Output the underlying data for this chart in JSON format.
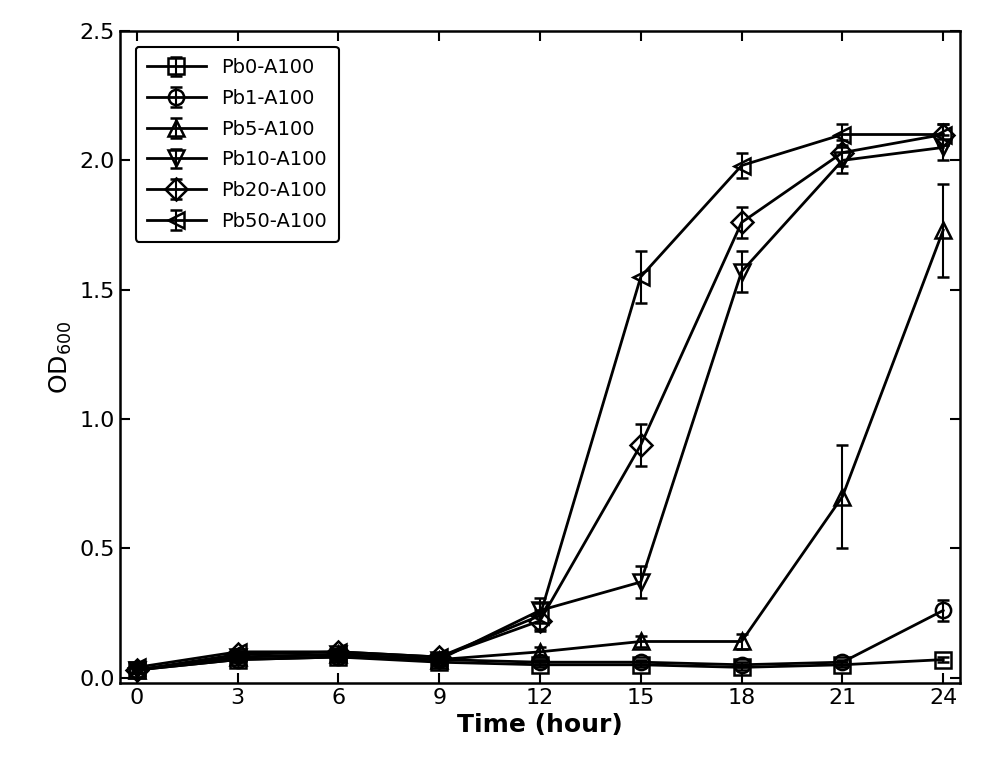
{
  "title": "",
  "xlabel": "Time (hour)",
  "ylabel": "OD$_{600}$",
  "xlim": [
    -0.5,
    24.5
  ],
  "ylim": [
    -0.02,
    2.5
  ],
  "xticks": [
    0,
    3,
    6,
    9,
    12,
    15,
    18,
    21,
    24
  ],
  "yticks": [
    0.0,
    0.5,
    1.0,
    1.5,
    2.0,
    2.5
  ],
  "series": [
    {
      "label": "Pb0-A100",
      "x": [
        0,
        3,
        6,
        9,
        12,
        15,
        18,
        21,
        24
      ],
      "y": [
        0.03,
        0.07,
        0.08,
        0.06,
        0.05,
        0.05,
        0.04,
        0.05,
        0.07
      ],
      "yerr": [
        0.01,
        0.01,
        0.01,
        0.01,
        0.01,
        0.01,
        0.01,
        0.01,
        0.01
      ],
      "marker": "s",
      "markersize": 11
    },
    {
      "label": "Pb1-A100",
      "x": [
        0,
        3,
        6,
        9,
        12,
        15,
        18,
        21,
        24
      ],
      "y": [
        0.03,
        0.07,
        0.08,
        0.07,
        0.06,
        0.06,
        0.05,
        0.06,
        0.26
      ],
      "yerr": [
        0.01,
        0.01,
        0.01,
        0.01,
        0.01,
        0.01,
        0.01,
        0.01,
        0.04
      ],
      "marker": "o",
      "markersize": 11
    },
    {
      "label": "Pb5-A100",
      "x": [
        0,
        3,
        6,
        9,
        12,
        15,
        18,
        21,
        24
      ],
      "y": [
        0.03,
        0.08,
        0.09,
        0.07,
        0.1,
        0.14,
        0.14,
        0.7,
        1.73
      ],
      "yerr": [
        0.01,
        0.01,
        0.01,
        0.01,
        0.02,
        0.02,
        0.03,
        0.2,
        0.18
      ],
      "marker": "^",
      "markersize": 11
    },
    {
      "label": "Pb10-A100",
      "x": [
        0,
        3,
        6,
        9,
        12,
        15,
        18,
        21,
        24
      ],
      "y": [
        0.03,
        0.08,
        0.09,
        0.07,
        0.26,
        0.37,
        1.57,
        2.0,
        2.05
      ],
      "yerr": [
        0.01,
        0.01,
        0.01,
        0.01,
        0.05,
        0.06,
        0.08,
        0.05,
        0.05
      ],
      "marker": "v",
      "markersize": 11
    },
    {
      "label": "Pb20-A100",
      "x": [
        0,
        3,
        6,
        9,
        12,
        15,
        18,
        21,
        24
      ],
      "y": [
        0.03,
        0.09,
        0.1,
        0.08,
        0.22,
        0.9,
        1.76,
        2.03,
        2.1
      ],
      "yerr": [
        0.01,
        0.01,
        0.01,
        0.01,
        0.04,
        0.08,
        0.06,
        0.05,
        0.04
      ],
      "marker": "D",
      "markersize": 11
    },
    {
      "label": "Pb50-A100",
      "x": [
        0,
        3,
        6,
        9,
        12,
        15,
        18,
        21,
        24
      ],
      "y": [
        0.04,
        0.1,
        0.1,
        0.08,
        0.24,
        1.55,
        1.98,
        2.1,
        2.1
      ],
      "yerr": [
        0.01,
        0.01,
        0.01,
        0.01,
        0.05,
        0.1,
        0.05,
        0.04,
        0.04
      ],
      "marker": "<",
      "markersize": 11
    }
  ],
  "legend_loc": "upper left",
  "legend_fontsize": 14,
  "tick_fontsize": 16,
  "label_fontsize": 18,
  "background_color": "#ffffff",
  "line_color": "#000000",
  "ecolor": "#000000",
  "capsize": 4,
  "linewidth": 2.0,
  "markeredgewidth": 1.8,
  "elinewidth": 1.5
}
